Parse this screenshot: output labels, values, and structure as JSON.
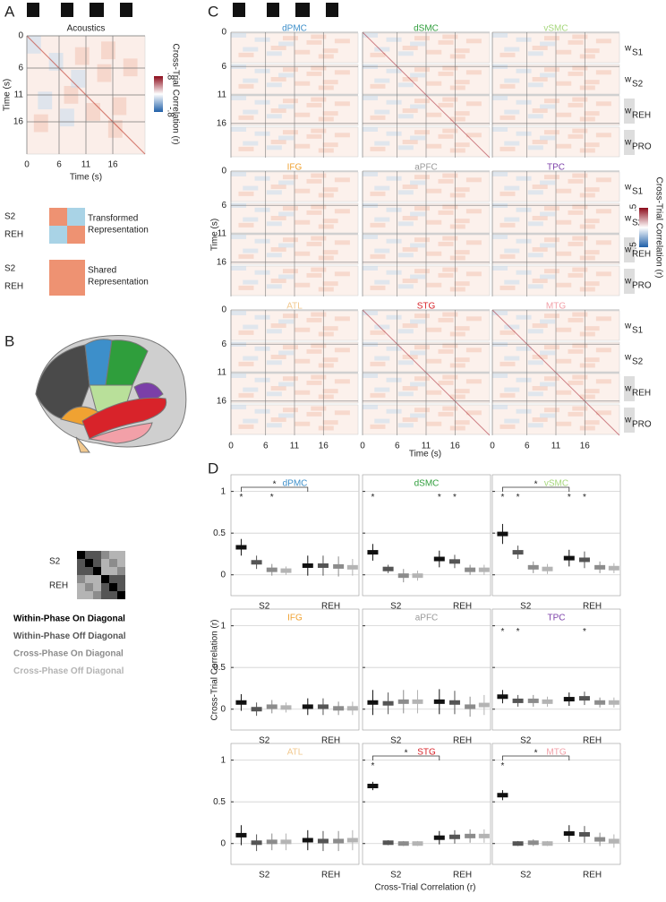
{
  "panel_a": {
    "label": "A",
    "heatmap_title": "Acoustics",
    "xlabel": "Time (s)",
    "ylabel": "Time (s)",
    "xlim": [
      0,
      22
    ],
    "ylim": [
      0,
      22
    ],
    "xticks": [
      0,
      6,
      11,
      16
    ],
    "yticks": [
      0,
      6,
      11,
      16
    ],
    "colorbar": {
      "label": "Cross-Trial Correlation (r)",
      "ticks": [
        {
          "value": 0.8,
          "label": ".8"
        },
        {
          "value": -0.8,
          "label": "-.8"
        }
      ]
    },
    "legend": [
      {
        "rows": [
          "S2",
          "REH"
        ],
        "text": [
          "Transformed",
          "Representation"
        ]
      },
      {
        "rows": [
          "S2",
          "REH"
        ],
        "text": [
          "Shared",
          "Representation"
        ]
      }
    ]
  },
  "panel_b": {
    "label": "B",
    "matrix_rows": [
      "S2",
      "REH"
    ],
    "legend": [
      "Within-Phase On Diagonal",
      "Within-Phase Off Diagonal",
      "Cross-Phase On Diagonal",
      "Cross-Phase Off Diagonal"
    ],
    "legend_colors": [
      "#000000",
      "#555555",
      "#8c8c8c",
      "#b4b4b4"
    ]
  },
  "panel_c": {
    "label": "C",
    "xlabel": "Time (s)",
    "ylabel": "Time (s)",
    "xlim": [
      0,
      22
    ],
    "ylim": [
      0,
      22
    ],
    "xticks": [
      0,
      6,
      11,
      16
    ],
    "yticks": [
      0,
      6,
      11,
      16
    ],
    "regions": [
      {
        "name": "dPMC",
        "color": "#3d8fca"
      },
      {
        "name": "dSMC",
        "color": "#2f9e3c"
      },
      {
        "name": "vSMC",
        "color": "#a6d77c"
      },
      {
        "name": "IFG",
        "color": "#f0a232"
      },
      {
        "name": "aPFC",
        "color": "#999999"
      },
      {
        "name": "TPC",
        "color": "#7b3fa8"
      },
      {
        "name": "ATL",
        "color": "#f2c98f"
      },
      {
        "name": "STG",
        "color": "#d8232a"
      },
      {
        "name": "MTG",
        "color": "#f2a0a8"
      }
    ],
    "row_labels": [
      {
        "main": "w",
        "sub": "S1"
      },
      {
        "main": "w",
        "sub": "S2"
      },
      {
        "main": "w",
        "sub": "REH"
      },
      {
        "main": "w",
        "sub": "PRO"
      }
    ],
    "colorbar": {
      "label": "Cross-Trial Correlation (r)",
      "ticks": [
        {
          "value": 0.5,
          "label": ".5"
        },
        {
          "value": -0.5,
          "label": "-.5"
        }
      ]
    }
  },
  "chart_data": {
    "type": "errorbar",
    "label": "D",
    "ylabel": "Cross-Trial Correlation (r)",
    "xlabel": "Cross-Trial Correlation (r)",
    "ylim": [
      -0.25,
      1.2
    ],
    "yticks": [
      0,
      0.5,
      1
    ],
    "grid": true,
    "groups": [
      "S2",
      "REH"
    ],
    "marker": "*",
    "condition_colors": [
      "#111111",
      "#555555",
      "#8c8c8c",
      "#b4b4b4"
    ],
    "panels": [
      {
        "name": "dPMC",
        "color": "#3d8fca",
        "values": [
          0.33,
          0.15,
          0.06,
          0.05,
          0.11,
          0.11,
          0.1,
          0.09
        ],
        "errors": [
          0.1,
          0.08,
          0.07,
          0.05,
          0.12,
          0.12,
          0.12,
          0.1
        ],
        "stars": [
          0,
          2
        ],
        "bracket": true
      },
      {
        "name": "dSMC",
        "color": "#2f9e3c",
        "values": [
          0.27,
          0.07,
          -0.01,
          -0.01,
          0.19,
          0.16,
          0.06,
          0.06
        ],
        "errors": [
          0.1,
          0.05,
          0.08,
          0.06,
          0.1,
          0.08,
          0.06,
          0.06
        ],
        "stars": [
          0,
          4,
          5
        ],
        "bracket": false
      },
      {
        "name": "vSMC",
        "color": "#a6d77c",
        "values": [
          0.49,
          0.27,
          0.09,
          0.07,
          0.2,
          0.18,
          0.09,
          0.08
        ],
        "errors": [
          0.12,
          0.08,
          0.07,
          0.06,
          0.1,
          0.1,
          0.07,
          0.06
        ],
        "stars": [
          0,
          1,
          4,
          5
        ],
        "bracket": true
      },
      {
        "name": "IFG",
        "color": "#f0a232",
        "values": [
          0.08,
          0.0,
          0.03,
          0.02,
          0.03,
          0.03,
          0.01,
          0.01
        ],
        "errors": [
          0.1,
          0.08,
          0.08,
          0.06,
          0.1,
          0.1,
          0.08,
          0.08
        ],
        "stars": [],
        "bracket": false
      },
      {
        "name": "aPFC",
        "color": "#999999",
        "values": [
          0.08,
          0.07,
          0.09,
          0.09,
          0.09,
          0.08,
          0.03,
          0.05
        ],
        "errors": [
          0.15,
          0.13,
          0.14,
          0.14,
          0.15,
          0.14,
          0.12,
          0.12
        ],
        "stars": [],
        "bracket": false
      },
      {
        "name": "TPC",
        "color": "#7b3fa8",
        "values": [
          0.15,
          0.1,
          0.1,
          0.09,
          0.12,
          0.13,
          0.08,
          0.08
        ],
        "errors": [
          0.08,
          0.07,
          0.07,
          0.06,
          0.08,
          0.08,
          0.06,
          0.06
        ],
        "stars": [
          0,
          1,
          5
        ],
        "bracket": false
      },
      {
        "name": "ATL",
        "color": "#f2c98f",
        "values": [
          0.1,
          0.01,
          0.02,
          0.02,
          0.04,
          0.03,
          0.03,
          0.04
        ],
        "errors": [
          0.12,
          0.1,
          0.1,
          0.1,
          0.12,
          0.12,
          0.12,
          0.12
        ],
        "stars": [],
        "bracket": false
      },
      {
        "name": "STG",
        "color": "#d8232a",
        "values": [
          0.69,
          0.01,
          0.0,
          0.0,
          0.07,
          0.08,
          0.09,
          0.09
        ],
        "errors": [
          0.05,
          0.03,
          0.03,
          0.03,
          0.08,
          0.08,
          0.08,
          0.08
        ],
        "stars": [
          0
        ],
        "bracket": true
      },
      {
        "name": "MTG",
        "color": "#f2a0a8",
        "values": [
          0.58,
          0.0,
          0.01,
          0.0,
          0.12,
          0.11,
          0.05,
          0.03
        ],
        "errors": [
          0.06,
          0.03,
          0.04,
          0.03,
          0.1,
          0.1,
          0.08,
          0.08
        ],
        "stars": [
          0
        ],
        "bracket": true
      }
    ]
  }
}
